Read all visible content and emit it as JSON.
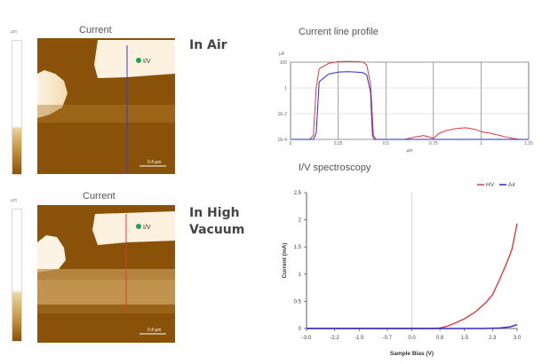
{
  "colorbars": [
    {
      "unit": "µm"
    },
    {
      "unit": "µm"
    }
  ],
  "images": [
    {
      "title": "Current",
      "marker_label": "I/V",
      "scale_label": "0.4 µm",
      "line_color": "#3a3ad0"
    },
    {
      "title": "Current",
      "marker_label": "I/V",
      "scale_label": "0.4 µm",
      "line_color": "#e03a3a"
    }
  ],
  "labels": {
    "air": "In Air",
    "vacuum_line1": "In High",
    "vacuum_line2": "Vacuum"
  },
  "colors": {
    "afm_dark": "#8a5208",
    "afm_light": "#fbf1de",
    "marker": "#1fa55a",
    "hv": "#e03a3a",
    "air": "#2b2bd0"
  },
  "chart_data": [
    {
      "type": "line",
      "title": "Current line profile",
      "ylabel": "µA",
      "xlabel": "µm",
      "y_log": true,
      "ylim": [
        0.0001,
        100
      ],
      "xlim": [
        0,
        1.25
      ],
      "x_ticks": [
        "0",
        "0.25",
        "0.5",
        "0.75",
        "1",
        "1.25"
      ],
      "y_ticks": [
        "100",
        "1",
        "1E-2",
        "1E-4"
      ],
      "series": [
        {
          "color": "#e03a3a",
          "points": [
            [
              0,
              0.0001
            ],
            [
              0.1,
              0.0001
            ],
            [
              0.12,
              0.0002
            ],
            [
              0.135,
              1
            ],
            [
              0.15,
              30
            ],
            [
              0.2,
              80
            ],
            [
              0.25,
              110
            ],
            [
              0.3,
              115
            ],
            [
              0.35,
              110
            ],
            [
              0.38,
              100
            ],
            [
              0.4,
              60
            ],
            [
              0.42,
              2
            ],
            [
              0.435,
              0.0002
            ],
            [
              0.45,
              0.0001
            ],
            [
              0.6,
              0.0001
            ],
            [
              0.65,
              0.00015
            ],
            [
              0.7,
              0.0002
            ],
            [
              0.75,
              0.00012
            ],
            [
              0.78,
              0.0003
            ],
            [
              0.82,
              0.0005
            ],
            [
              0.87,
              0.0007
            ],
            [
              0.92,
              0.0008
            ],
            [
              0.97,
              0.0006
            ],
            [
              1.0,
              0.0004
            ],
            [
              1.05,
              0.0003
            ],
            [
              1.1,
              0.0002
            ],
            [
              1.15,
              0.00013
            ],
            [
              1.2,
              0.0001
            ],
            [
              1.25,
              0.0001
            ]
          ]
        },
        {
          "color": "#2b2bd0",
          "points": [
            [
              0,
              0.0001
            ],
            [
              0.12,
              0.0001
            ],
            [
              0.135,
              0.0003
            ],
            [
              0.15,
              3
            ],
            [
              0.2,
              12
            ],
            [
              0.25,
              17
            ],
            [
              0.3,
              18
            ],
            [
              0.35,
              17
            ],
            [
              0.38,
              15
            ],
            [
              0.4,
              10
            ],
            [
              0.42,
              0.5
            ],
            [
              0.43,
              0.0002
            ],
            [
              0.44,
              0.0001
            ],
            [
              1.25,
              0.0001
            ]
          ]
        }
      ]
    },
    {
      "type": "line",
      "title": "I/V spectroscopy",
      "xlabel": "Sample Bias (V)",
      "ylabel": "Current (mA)",
      "xlim": [
        -3.0,
        3.0
      ],
      "ylim": [
        0,
        2.5
      ],
      "x_ticks": [
        "-3.0",
        "-2.2",
        "-1.5",
        "-0.7",
        "0.0",
        "0.8",
        "1.5",
        "2.3",
        "3.0"
      ],
      "y_ticks": [
        "0",
        "0.5",
        "1",
        "1.5",
        "2",
        "2.5"
      ],
      "legend": "top-right",
      "series": [
        {
          "name": "HV",
          "color": "#e03a3a",
          "points": [
            [
              -3,
              0
            ],
            [
              0.6,
              0
            ],
            [
              0.8,
              0.01
            ],
            [
              1.0,
              0.04
            ],
            [
              1.2,
              0.09
            ],
            [
              1.5,
              0.18
            ],
            [
              1.8,
              0.3
            ],
            [
              2.1,
              0.47
            ],
            [
              2.3,
              0.62
            ],
            [
              2.5,
              0.9
            ],
            [
              2.7,
              1.2
            ],
            [
              2.85,
              1.45
            ],
            [
              3.0,
              1.93
            ]
          ]
        },
        {
          "name": "Air",
          "color": "#2b2bd0",
          "points": [
            [
              -3,
              0
            ],
            [
              2.0,
              0
            ],
            [
              2.5,
              0.01
            ],
            [
              2.8,
              0.03
            ],
            [
              3.0,
              0.07
            ]
          ]
        }
      ]
    }
  ]
}
